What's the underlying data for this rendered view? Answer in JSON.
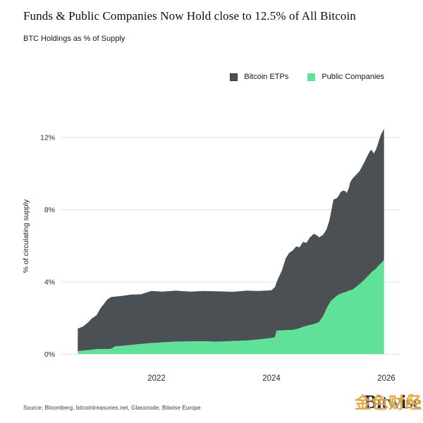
{
  "header": {
    "title": "Funds & Public Companies Now Hold close to 12.5% of All Bitcoin",
    "subtitle": "BTC Holdings as % of Supply"
  },
  "legend": [
    {
      "label": "Bitcoin ETPs",
      "color": "#4b5054"
    },
    {
      "label": "Public Companies",
      "color": "#5fe199"
    }
  ],
  "footer": {
    "source": "Source: Bloomberg, bitcointreasuries.net, Glassnode, Bitwise Europe",
    "logo_text": "Bitwise",
    "watermark_text": "金色财经"
  },
  "colors": {
    "etp_area": "#4b5054",
    "public_area": "#5fe199",
    "gridline": "#e2e2e2",
    "tick_text": "#2b2b2b",
    "logo_dot_orange": "#F7A21B",
    "watermark_gold": "#E2A43C"
  },
  "chart_data": {
    "type": "area",
    "stacked": true,
    "title": "Funds & Public Companies Now Hold close to 12.5% of All Bitcoin",
    "subtitle": "BTC Holdings as % of Supply",
    "xlabel": "",
    "ylabel": "% of circulating supply",
    "grid": "horizontal",
    "legend_position": "top-right",
    "xlim": [
      2020.4,
      2026.25
    ],
    "ylim": [
      0,
      13
    ],
    "x_ticks": [
      2022,
      2024,
      2026
    ],
    "y_tick_values": [
      0,
      4,
      8,
      12
    ],
    "y_ticks": [
      "0%",
      "4%",
      "8%",
      "12%"
    ],
    "x": [
      2020.63,
      2020.72,
      2020.81,
      2020.87,
      2020.96,
      2021.02,
      2021.08,
      2021.14,
      2021.21,
      2021.28,
      2021.42,
      2021.55,
      2021.73,
      2021.91,
      2022.1,
      2022.34,
      2022.59,
      2022.83,
      2023.08,
      2023.33,
      2023.57,
      2023.78,
      2024.0,
      2024.06,
      2024.09,
      2024.12,
      2024.18,
      2024.25,
      2024.31,
      2024.37,
      2024.43,
      2024.49,
      2024.55,
      2024.61,
      2024.67,
      2024.74,
      2024.8,
      2024.83,
      2024.9,
      2024.96,
      2025.01,
      2025.04,
      2025.08,
      2025.13,
      2025.17,
      2025.2,
      2025.25,
      2025.29,
      2025.31,
      2025.35,
      2025.37,
      2025.41,
      2025.47,
      2025.53,
      2025.6,
      2025.66,
      2025.71,
      2025.74,
      2025.78,
      2025.82,
      2025.85,
      2025.9,
      2025.94,
      2025.96
    ],
    "series": [
      {
        "name": "Public Companies",
        "color": "#5fe199",
        "values": [
          0.15,
          0.18,
          0.21,
          0.23,
          0.26,
          0.26,
          0.27,
          0.27,
          0.28,
          0.42,
          0.45,
          0.49,
          0.55,
          0.6,
          0.64,
          0.68,
          0.69,
          0.7,
          0.68,
          0.71,
          0.74,
          0.8,
          0.88,
          0.92,
          1.28,
          1.29,
          1.3,
          1.31,
          1.32,
          1.33,
          1.36,
          1.42,
          1.5,
          1.55,
          1.6,
          1.65,
          1.72,
          1.76,
          2.1,
          2.5,
          2.8,
          2.95,
          3.05,
          3.2,
          3.28,
          3.33,
          3.38,
          3.42,
          3.45,
          3.5,
          3.52,
          3.55,
          3.7,
          3.85,
          4.05,
          4.25,
          4.4,
          4.52,
          4.62,
          4.72,
          4.83,
          5.0,
          5.13,
          5.2
        ]
      },
      {
        "name": "Bitcoin ETPs",
        "color": "#4b5054",
        "values": [
          1.25,
          1.34,
          1.54,
          1.72,
          1.89,
          2.24,
          2.48,
          2.73,
          2.87,
          2.75,
          2.77,
          2.79,
          2.75,
          2.88,
          2.81,
          2.82,
          2.76,
          2.78,
          2.78,
          2.73,
          2.76,
          2.68,
          2.64,
          2.78,
          2.67,
          2.91,
          3.3,
          3.99,
          4.28,
          4.39,
          4.59,
          4.48,
          4.7,
          4.6,
          4.85,
          5.0,
          4.83,
          4.69,
          4.5,
          4.4,
          4.6,
          4.95,
          5.5,
          5.4,
          5.47,
          5.62,
          5.67,
          5.58,
          5.45,
          5.7,
          5.98,
          6.15,
          6.2,
          6.25,
          6.45,
          6.65,
          6.8,
          6.78,
          6.48,
          6.58,
          6.77,
          7.1,
          7.22,
          7.25
        ]
      }
    ],
    "final_total_pct": 12.45
  }
}
